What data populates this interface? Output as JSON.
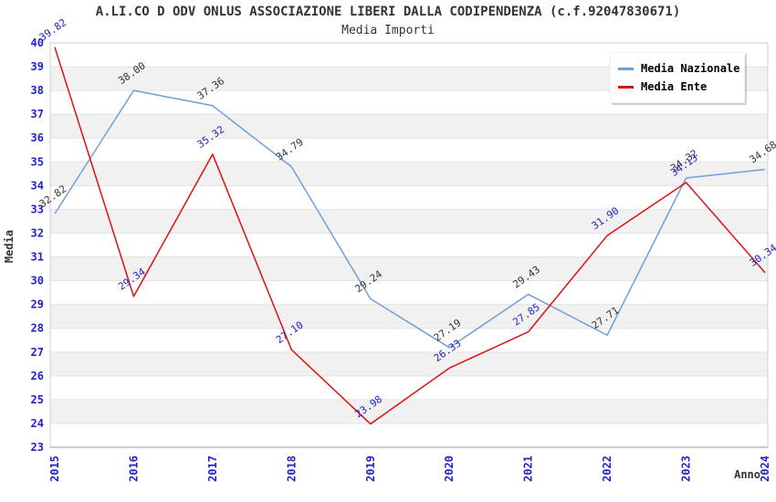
{
  "header": {
    "title": "A.LI.CO D ODV ONLUS ASSOCIAZIONE LIBERI DALLA CODIPENDENZA (c.f.92047830671)",
    "subtitle": "Media Importi"
  },
  "axes": {
    "y_title": "Media",
    "x_title": "Anno",
    "tick_color": "#2222cc",
    "axis_title_color": "#333333"
  },
  "legend": {
    "items": [
      {
        "label": "Media Nazionale",
        "color": "#6f9fd8"
      },
      {
        "label": "Media Ente",
        "color": "#dd1111"
      }
    ]
  },
  "colors": {
    "band_fill": "#f1f1f1",
    "grid_line": "#e3e3e3",
    "plot_border": "#cfcfcf",
    "x_axis_line": "#999999"
  },
  "chart_data": {
    "type": "line",
    "title": "A.LI.CO D ODV ONLUS ASSOCIAZIONE LIBERI DALLA CODIPENDENZA (c.f.92047830671)",
    "subtitle": "Media Importi",
    "xlabel": "Anno",
    "ylabel": "Media",
    "x": [
      2015,
      2016,
      2017,
      2018,
      2019,
      2020,
      2021,
      2022,
      2023,
      2024
    ],
    "series": [
      {
        "name": "Media Nazionale",
        "color": "#6f9fd8",
        "label_color": "#333333",
        "values": [
          32.82,
          38.0,
          37.36,
          34.79,
          29.24,
          27.19,
          29.43,
          27.71,
          34.32,
          34.68
        ]
      },
      {
        "name": "Media Ente",
        "color": "#dd1111",
        "label_color": "#2222cc",
        "values": [
          39.82,
          29.34,
          35.32,
          27.1,
          23.98,
          26.33,
          27.85,
          31.9,
          34.13,
          30.34
        ]
      }
    ],
    "ylim": [
      23,
      40
    ],
    "ytick_step": 1,
    "grid": "horizontal-bands",
    "legend_position": "top-right"
  }
}
